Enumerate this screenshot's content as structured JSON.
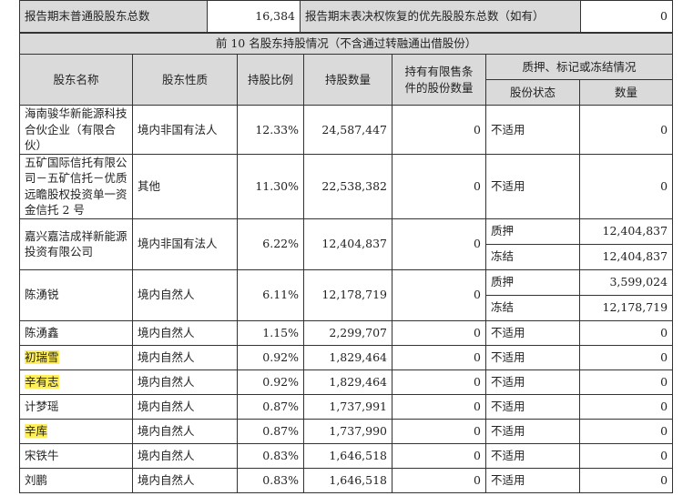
{
  "summary": {
    "common_label": "报告期末普通股股东总数",
    "common_value": "16,384",
    "preferred_label": "报告期末表决权恢复的优先股股东总数（如有）",
    "preferred_value": "0"
  },
  "section_title": "前 10 名股东持股情况（不含通过转融通出借股份）",
  "headers": {
    "name": "股东名称",
    "nature": "股东性质",
    "ratio": "持股比例",
    "shares": "持股数量",
    "restricted": "持有有限售条件的股份数量",
    "pledge_group": "质押、标记或冻结情况",
    "status": "股份状态",
    "qty": "数量"
  },
  "highlight_color": "#ffef5a",
  "rows": [
    {
      "name": "海南骏华新能源科技合伙企业（有限合伙）",
      "nature": "境内非国有法人",
      "ratio": "12.33%",
      "shares": "24,587,447",
      "restricted": "0",
      "pledges": [
        {
          "status": "不适用",
          "qty": "0"
        }
      ]
    },
    {
      "name": "五矿国际信托有限公司－五矿信托－优质远瞻股权投资单一资金信托 2 号",
      "nature": "其他",
      "ratio": "11.30%",
      "shares": "22,538,382",
      "restricted": "0",
      "pledges": [
        {
          "status": "不适用",
          "qty": "0"
        }
      ]
    },
    {
      "name": "嘉兴嘉洁成祥新能源投资有限公司",
      "nature": "境内非国有法人",
      "ratio": "6.22%",
      "shares": "12,404,837",
      "restricted": "0",
      "pledges": [
        {
          "status": "质押",
          "qty": "12,404,837"
        },
        {
          "status": "冻结",
          "qty": "12,404,837"
        }
      ]
    },
    {
      "name": "陈湧锐",
      "nature": "境内自然人",
      "ratio": "6.11%",
      "shares": "12,178,719",
      "restricted": "0",
      "pledges": [
        {
          "status": "质押",
          "qty": "3,599,024"
        },
        {
          "status": "冻结",
          "qty": "12,178,719"
        }
      ]
    },
    {
      "name": "陈湧鑫",
      "nature": "境内自然人",
      "ratio": "1.15%",
      "shares": "2,299,707",
      "restricted": "0",
      "pledges": [
        {
          "status": "不适用",
          "qty": "0"
        }
      ]
    },
    {
      "name": "初瑞雪",
      "highlighted": true,
      "nature": "境内自然人",
      "ratio": "0.92%",
      "shares": "1,829,464",
      "restricted": "0",
      "pledges": [
        {
          "status": "不适用",
          "qty": "0"
        }
      ]
    },
    {
      "name": "辛有志",
      "highlighted": true,
      "nature": "境内自然人",
      "ratio": "0.92%",
      "shares": "1,829,464",
      "restricted": "0",
      "pledges": [
        {
          "status": "不适用",
          "qty": "0"
        }
      ]
    },
    {
      "name": "计梦瑶",
      "nature": "境内自然人",
      "ratio": "0.87%",
      "shares": "1,737,991",
      "restricted": "0",
      "pledges": [
        {
          "status": "不适用",
          "qty": "0"
        }
      ]
    },
    {
      "name": "辛库",
      "highlighted": true,
      "nature": "境内自然人",
      "ratio": "0.87%",
      "shares": "1,737,990",
      "restricted": "0",
      "pledges": [
        {
          "status": "不适用",
          "qty": "0"
        }
      ]
    },
    {
      "name": "宋铁牛",
      "nature": "境内自然人",
      "ratio": "0.83%",
      "shares": "1,646,518",
      "restricted": "0",
      "pledges": [
        {
          "status": "不适用",
          "qty": "0"
        }
      ]
    },
    {
      "name": "刘鹏",
      "nature": "境内自然人",
      "ratio": "0.83%",
      "shares": "1,646,518",
      "restricted": "0",
      "pledges": [
        {
          "status": "不适用",
          "qty": "0"
        }
      ]
    }
  ]
}
